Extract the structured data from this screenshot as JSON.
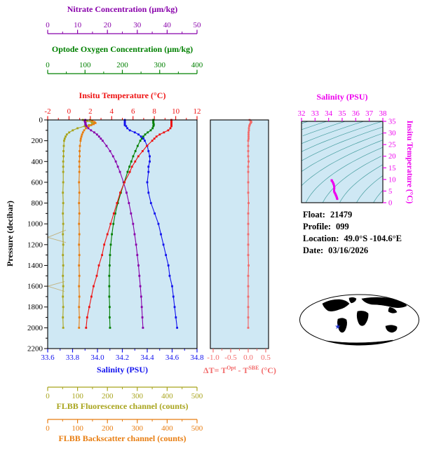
{
  "colors": {
    "plot_bg": "#cfe8f4",
    "frame": "#000000",
    "land": "#f5c0ba",
    "leader": "#c2b280"
  },
  "info": {
    "rows": [
      {
        "label": "Float:",
        "value": "21479"
      },
      {
        "label": "Profile:",
        "value": "099"
      },
      {
        "label": "Location:",
        "value": "49.0°S -104.6°E"
      },
      {
        "label": "Date:",
        "value": "03/16/2026"
      }
    ]
  },
  "chart_data": [
    {
      "id": "profiles",
      "type": "line",
      "ylabel": "Pressure (decibar)",
      "ylim": [
        0,
        2200
      ],
      "yticks": [
        0,
        200,
        400,
        600,
        800,
        1000,
        1200,
        1400,
        1600,
        1800,
        2000,
        2200
      ],
      "yminor": 100,
      "pressure": [
        0,
        10,
        20,
        30,
        40,
        50,
        60,
        80,
        100,
        120,
        140,
        160,
        180,
        200,
        250,
        300,
        350,
        400,
        450,
        500,
        600,
        700,
        800,
        900,
        1000,
        1100,
        1200,
        1300,
        1400,
        1500,
        1600,
        1700,
        1800,
        1900,
        2000
      ],
      "series": [
        {
          "key": "temperature",
          "name": "Insitu Temperature (°C)",
          "color": "#ee1111",
          "xlim": [
            -2,
            12
          ],
          "ticks": [
            -2,
            0,
            2,
            4,
            6,
            8,
            10,
            12
          ],
          "minor": 1,
          "decimals": 0,
          "values": [
            9.6,
            9.6,
            9.6,
            9.6,
            9.6,
            9.6,
            9.6,
            9.5,
            9.3,
            8.9,
            8.5,
            8.2,
            8.0,
            7.8,
            7.3,
            6.9,
            6.5,
            6.2,
            5.9,
            5.7,
            5.2,
            4.8,
            4.5,
            4.2,
            3.9,
            3.6,
            3.3,
            3.1,
            2.8,
            2.6,
            2.3,
            2.1,
            1.9,
            1.7,
            1.6
          ]
        },
        {
          "key": "salinity",
          "name": "Salinity (PSU)",
          "color": "#1111ee",
          "xlim": [
            33.6,
            34.8
          ],
          "ticks": [
            33.6,
            33.8,
            34.0,
            34.2,
            34.4,
            34.6,
            34.8
          ],
          "minor": 0.1,
          "decimals": 1,
          "values": [
            34.22,
            34.22,
            34.22,
            34.22,
            34.22,
            34.22,
            34.23,
            34.24,
            34.26,
            34.3,
            34.33,
            34.35,
            34.37,
            34.38,
            34.4,
            34.41,
            34.42,
            34.42,
            34.41,
            34.41,
            34.4,
            34.41,
            34.43,
            34.46,
            34.49,
            34.51,
            34.53,
            34.55,
            34.57,
            34.58,
            34.6,
            34.61,
            34.62,
            34.63,
            34.64
          ]
        },
        {
          "key": "oxygen",
          "name": "Optode Oxygen Concentration (µm/kg)",
          "color": "#008000",
          "xlim": [
            0,
            400
          ],
          "ticks": [
            0,
            100,
            200,
            300,
            400
          ],
          "minor": 50,
          "decimals": 0,
          "values": [
            283,
            283,
            283,
            283,
            284,
            284,
            283,
            281,
            276,
            268,
            261,
            256,
            252,
            248,
            241,
            235,
            229,
            224,
            219,
            214,
            205,
            196,
            188,
            181,
            176,
            172,
            169,
            167,
            166,
            165,
            165,
            165,
            166,
            166,
            167
          ]
        },
        {
          "key": "nitrate",
          "name": "Nitrate Concentration (µm/kg)",
          "color": "#8800aa",
          "xlim": [
            0,
            50
          ],
          "ticks": [
            0,
            10,
            20,
            30,
            40,
            50
          ],
          "minor": 5,
          "decimals": 0,
          "values": [
            12.6,
            12.4,
            12.5,
            12.7,
            12.6,
            12.8,
            13.0,
            13.6,
            14.5,
            15.6,
            16.5,
            17.2,
            17.8,
            18.4,
            19.7,
            20.9,
            21.9,
            22.8,
            23.5,
            24.2,
            25.4,
            26.4,
            27.2,
            27.9,
            28.6,
            29.1,
            29.6,
            30.0,
            30.4,
            30.7,
            31.0,
            31.3,
            31.5,
            31.7,
            31.9
          ]
        },
        {
          "key": "fluorescence",
          "name": "FLBB Fluorescence channel (counts)",
          "color": "#a8a41c",
          "xlim": [
            0,
            500
          ],
          "ticks": [
            0,
            100,
            200,
            300,
            400,
            500
          ],
          "minor": 50,
          "decimals": 0,
          "values": [
            118,
            132,
            147,
            155,
            149,
            138,
            124,
            100,
            84,
            72,
            64,
            60,
            57,
            55,
            54,
            53,
            53,
            52,
            52,
            52,
            52,
            51,
            52,
            51,
            52,
            51,
            52,
            51,
            52,
            51,
            52,
            51,
            52,
            51,
            52
          ]
        },
        {
          "key": "backscatter",
          "name": "FLBB Backscatter channel (counts)",
          "color": "#e87d10",
          "xlim": [
            0,
            500
          ],
          "ticks": [
            0,
            100,
            200,
            300,
            400,
            500
          ],
          "minor": 50,
          "decimals": 0,
          "values": [
            142,
            150,
            157,
            160,
            154,
            146,
            138,
            128,
            122,
            118,
            115,
            113,
            111,
            110,
            108,
            107,
            107,
            106,
            106,
            106,
            105,
            106,
            105,
            106,
            105,
            106,
            105,
            106,
            105,
            106,
            105,
            106,
            105,
            106,
            105
          ]
        }
      ]
    },
    {
      "id": "delta_t",
      "type": "line",
      "xlabel": "ΔT= T^Opt - T^SBE (°C)",
      "xlabel_parts": [
        "ΔT= T",
        "Opt",
        " - T",
        "SBE",
        " (°C)"
      ],
      "color": "#f26b6b",
      "xlim": [
        -1.08,
        0.58
      ],
      "xticks": [
        -1.0,
        -0.5,
        0.0,
        0.5
      ],
      "minor": 0.25,
      "decimals": 1,
      "pressure": [
        0,
        10,
        20,
        30,
        40,
        50,
        60,
        80,
        100,
        120,
        140,
        160,
        180,
        200,
        250,
        300,
        350,
        400,
        450,
        500,
        600,
        700,
        800,
        900,
        1000,
        1100,
        1200,
        1300,
        1400,
        1500,
        1600,
        1700,
        1800,
        1900,
        2000
      ],
      "values": [
        0.04,
        0.07,
        0.09,
        0.07,
        0.05,
        0.04,
        0.03,
        0.02,
        0.02,
        0.01,
        0.01,
        0.01,
        0.01,
        0.0,
        0.0,
        0.0,
        0.0,
        0.01,
        0.0,
        0.0,
        0.0,
        0.0,
        0.01,
        0.0,
        0.0,
        0.0,
        0.0,
        0.0,
        0.01,
        0.0,
        0.0,
        0.0,
        0.0,
        0.0,
        0.0
      ]
    },
    {
      "id": "ts_diagram",
      "type": "scatter",
      "xlabel": "Salinity (PSU)",
      "xlim": [
        32,
        38
      ],
      "xticks": [
        32,
        33,
        34,
        35,
        36,
        37,
        38
      ],
      "ylabel": "Insitu Temperature (°C)",
      "ylim": [
        0,
        35
      ],
      "yticks": [
        0,
        5,
        10,
        15,
        20,
        25,
        30,
        35
      ],
      "point_color": "#ee00ee",
      "contour_color": "#2e9090",
      "contour_sigmas": [
        18,
        19,
        20,
        21,
        22,
        23,
        24,
        25,
        26,
        27,
        28,
        29,
        30
      ],
      "points_note": "salinity vs temperature pairs from profiles series"
    },
    {
      "id": "world_map",
      "type": "map",
      "marker": {
        "lat": -49.0,
        "lon": -104.6
      },
      "marker_symbol": "★",
      "marker_color": "#2233cc"
    }
  ]
}
